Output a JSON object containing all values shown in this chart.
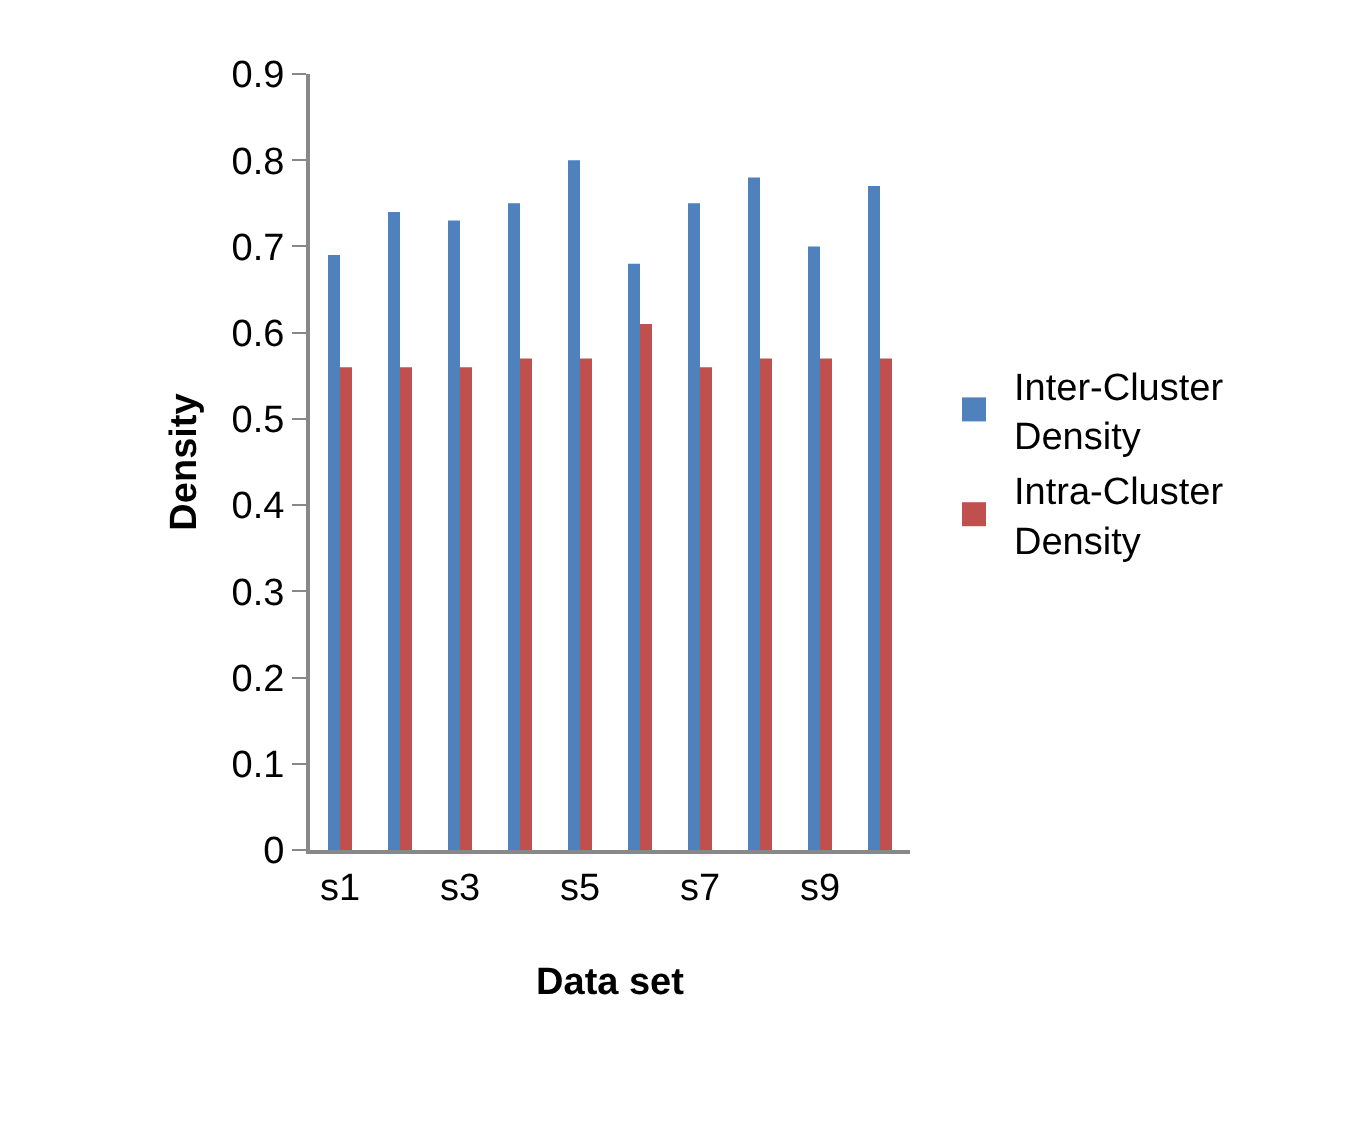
{
  "chart_data": {
    "type": "bar",
    "xlabel": "Data set",
    "ylabel": "Density",
    "categories": [
      "s1",
      null,
      "s3",
      null,
      "s5",
      null,
      "s7",
      null,
      "s9",
      null
    ],
    "series": [
      {
        "name": "Inter-Cluster Density",
        "color": "#4f81bd",
        "values": [
          0.69,
          0.74,
          0.73,
          0.75,
          0.8,
          0.68,
          0.75,
          0.78,
          0.7,
          0.77
        ]
      },
      {
        "name": "Intra-Cluster Density",
        "color": "#c0504d",
        "values": [
          0.56,
          0.56,
          0.56,
          0.57,
          0.57,
          0.61,
          0.56,
          0.57,
          0.57,
          0.57
        ]
      }
    ],
    "ylim": [
      0,
      0.9
    ],
    "yticks": [
      0,
      0.1,
      0.2,
      0.3,
      0.4,
      0.5,
      0.6,
      0.7,
      0.8,
      0.9
    ],
    "legend": "right"
  }
}
